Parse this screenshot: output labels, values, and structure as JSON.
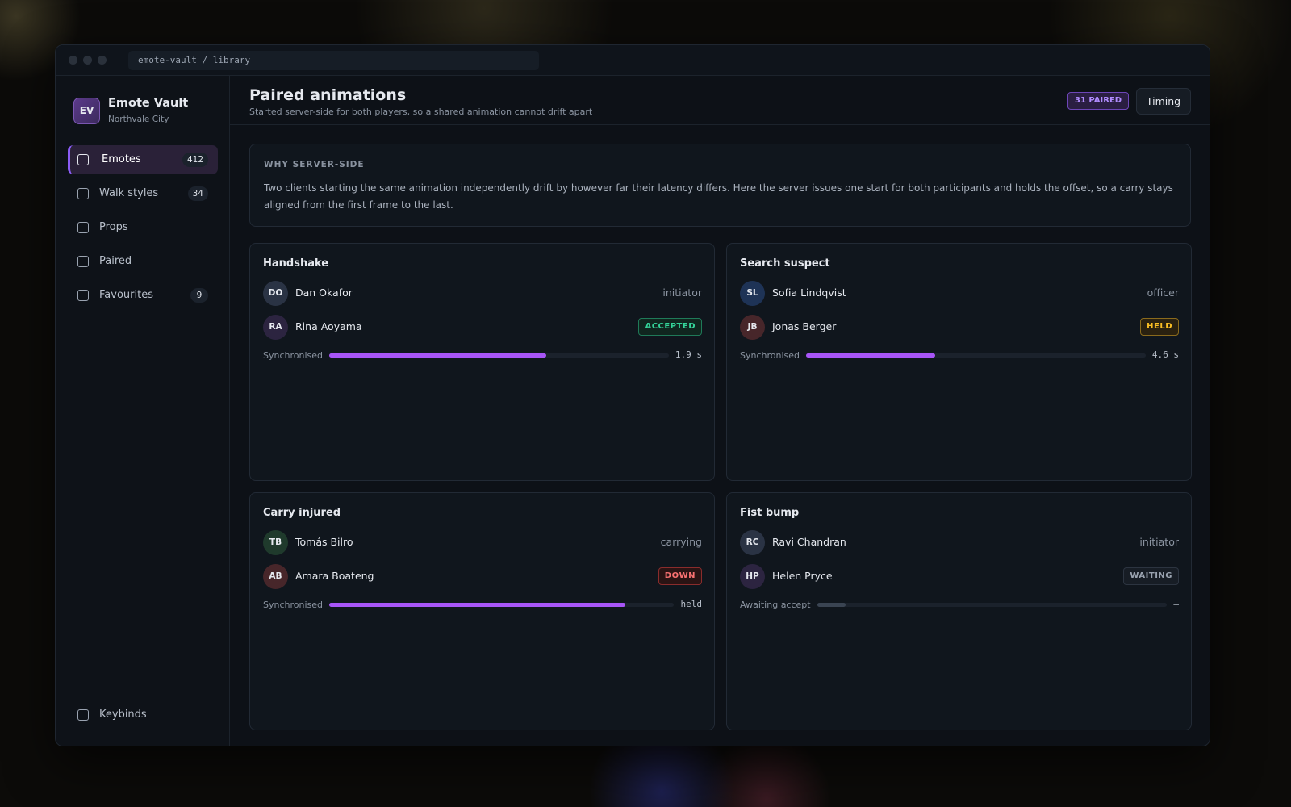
{
  "window": {
    "address": "emote-vault / library"
  },
  "sidebar": {
    "brand": {
      "initials": "EV",
      "name": "Emote Vault",
      "subtitle": "Northvale City"
    },
    "nav": [
      {
        "label": "Emotes",
        "count": 412
      },
      {
        "label": "Walk styles",
        "count": 34
      },
      {
        "label": "Props"
      },
      {
        "label": "Paired"
      },
      {
        "label": "Favourites",
        "count": 9
      }
    ],
    "footer": "Keybinds"
  },
  "header": {
    "title": "Paired animations",
    "subtitle": "Started server-side for both players, so a shared animation cannot drift apart",
    "badge": "31 PAIRED",
    "button": "Timing"
  },
  "info": {
    "heading": "WHY SERVER-SIDE",
    "text": "Two clients starting the same animation independently drift by however far their latency differs. Here the server issues one start for both participants and holds the offset, so a carry stays aligned from the first frame to the last."
  },
  "cards": [
    {
      "title": "Handshake",
      "players": [
        {
          "initials": "DO",
          "name": "Dan Okafor",
          "role": "initiator"
        },
        {
          "initials": "RA",
          "name": "Rina Aoyama",
          "status": "ACCEPTED"
        }
      ],
      "progress_label": "Synchronised",
      "progress": 64,
      "progress_value": "1.9 s"
    },
    {
      "title": "Search suspect",
      "players": [
        {
          "initials": "SL",
          "name": "Sofia Lindqvist",
          "role": "officer"
        },
        {
          "initials": "JB",
          "name": "Jonas Berger",
          "status": "HELD"
        }
      ],
      "progress_label": "Synchronised",
      "progress": 38,
      "progress_value": "4.6 s"
    },
    {
      "title": "Carry injured",
      "players": [
        {
          "initials": "TB",
          "name": "Tomás Bilro",
          "role": "carrying"
        },
        {
          "initials": "AB",
          "name": "Amara Boateng",
          "status": "DOWN"
        }
      ],
      "progress_label": "Synchronised",
      "progress": 86,
      "progress_value": "held"
    },
    {
      "title": "Fist bump",
      "players": [
        {
          "initials": "RC",
          "name": "Ravi Chandran",
          "role": "initiator"
        },
        {
          "initials": "HP",
          "name": "Helen Pryce",
          "status": "WAITING"
        }
      ],
      "progress_label": "Awaiting accept",
      "progress": 8,
      "progress_value": "–"
    }
  ]
}
